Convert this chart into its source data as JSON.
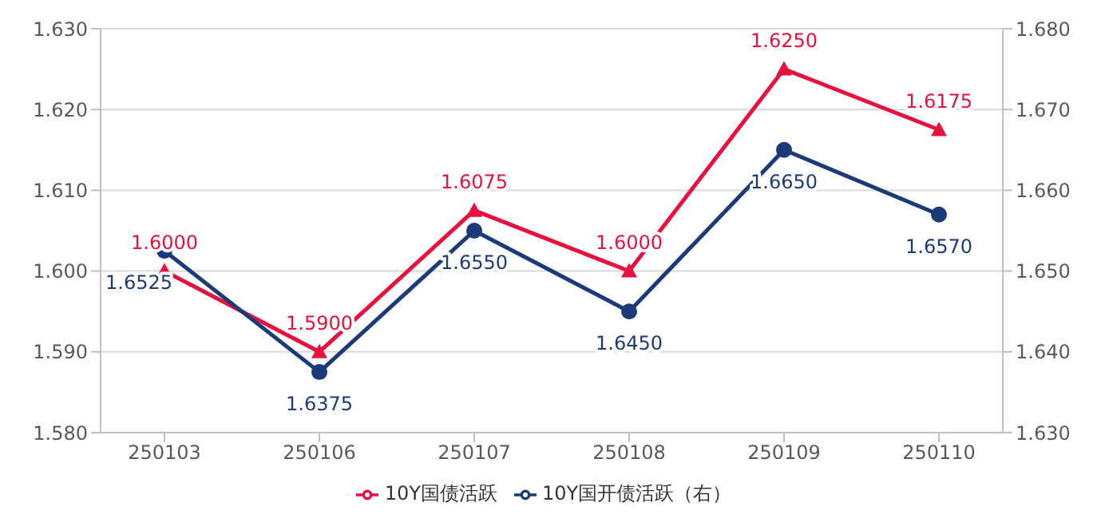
{
  "chart_data": {
    "type": "line",
    "categories": [
      "250103",
      "250106",
      "250107",
      "250108",
      "250109",
      "250110"
    ],
    "series": [
      {
        "name": "10Y国债活跃",
        "color": "#e8103c",
        "marker": "triangle",
        "values": [
          1.6,
          1.59,
          1.6075,
          1.6,
          1.625,
          1.6175
        ],
        "value_labels": [
          "1.6000",
          "1.5900",
          "1.6075",
          "1.6000",
          "1.6250",
          "1.6175"
        ]
      },
      {
        "name": "10Y国开债活跃（右）",
        "color": "#1a3a78",
        "marker": "circle",
        "axis": "y2",
        "values": [
          1.6525,
          1.6375,
          1.655,
          1.645,
          1.665,
          1.657
        ],
        "value_labels": [
          "1.6525",
          "1.6375",
          "1.6550",
          "1.6450",
          "1.6650",
          "1.6570"
        ]
      }
    ],
    "ylim": [
      1.58,
      1.63
    ],
    "yticks": [
      {
        "value": 1.58,
        "label": "1.580"
      },
      {
        "value": 1.59,
        "label": "1.590"
      },
      {
        "value": 1.6,
        "label": "1.600"
      },
      {
        "value": 1.61,
        "label": "1.610"
      },
      {
        "value": 1.62,
        "label": "1.620"
      },
      {
        "value": 1.63,
        "label": "1.630"
      }
    ],
    "y2lim": [
      1.63,
      1.68
    ],
    "y2ticks": [
      {
        "value": 1.63,
        "label": "1.630"
      },
      {
        "value": 1.64,
        "label": "1.640"
      },
      {
        "value": 1.65,
        "label": "1.650"
      },
      {
        "value": 1.66,
        "label": "1.660"
      },
      {
        "value": 1.67,
        "label": "1.670"
      },
      {
        "value": 1.68,
        "label": "1.680"
      }
    ],
    "grid": "y",
    "legend": "bottom",
    "line_style": "solid"
  }
}
